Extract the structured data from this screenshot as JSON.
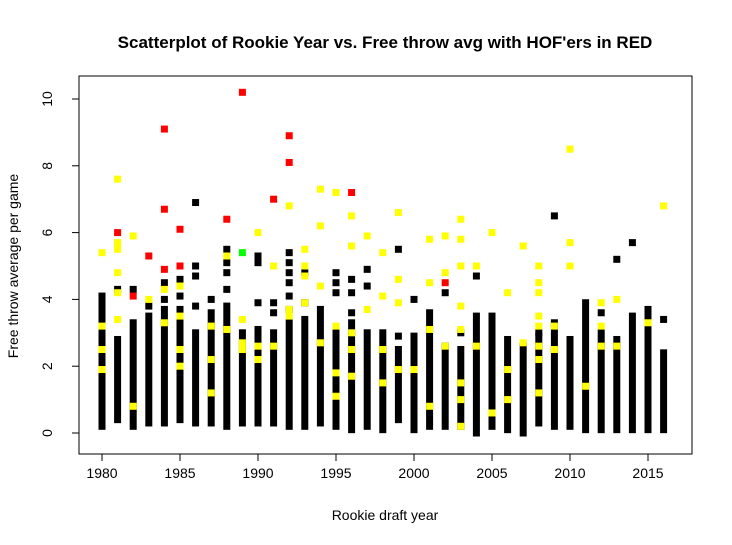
{
  "chart_data": {
    "type": "scatter",
    "title": "Scatterplot of Rookie Year vs. Free throw avg with HOF'ers in RED",
    "xlabel": "Rookie draft year",
    "ylabel": "Free throw average per game",
    "xlim": [
      1979,
      2017
    ],
    "ylim": [
      -0.4,
      10.5
    ],
    "xticks": [
      1980,
      1985,
      1990,
      1995,
      2000,
      2005,
      2010,
      2015
    ],
    "yticks": [
      0,
      2,
      4,
      6,
      8,
      10
    ],
    "grid": false,
    "legend": "none",
    "colors": {
      "regular": "#000000",
      "highlight_yellow": "#FFFF00",
      "hof": "#FF0000",
      "green": "#00FF00"
    },
    "columns": [
      {
        "year": 1980,
        "lo": 0.2,
        "hi": 4.1
      },
      {
        "year": 1981,
        "lo": 0.4,
        "hi": 2.8
      },
      {
        "year": 1982,
        "lo": 0.2,
        "hi": 3.3
      },
      {
        "year": 1983,
        "lo": 0.3,
        "hi": 3.5
      },
      {
        "year": 1984,
        "lo": 0.3,
        "hi": 3.7
      },
      {
        "year": 1985,
        "lo": 0.4,
        "hi": 3.7
      },
      {
        "year": 1986,
        "lo": 0.3,
        "hi": 3.0
      },
      {
        "year": 1987,
        "lo": 0.3,
        "hi": 3.6
      },
      {
        "year": 1988,
        "lo": 0.2,
        "hi": 3.8
      },
      {
        "year": 1989,
        "lo": 0.3,
        "hi": 3.0
      },
      {
        "year": 1990,
        "lo": 0.3,
        "hi": 3.1
      },
      {
        "year": 1991,
        "lo": 0.3,
        "hi": 3.0
      },
      {
        "year": 1992,
        "lo": 0.2,
        "hi": 3.3
      },
      {
        "year": 1993,
        "lo": 0.2,
        "hi": 3.4
      },
      {
        "year": 1994,
        "lo": 0.3,
        "hi": 3.7
      },
      {
        "year": 1995,
        "lo": 0.2,
        "hi": 3.0
      },
      {
        "year": 1996,
        "lo": 0.1,
        "hi": 3.3
      },
      {
        "year": 1997,
        "lo": 0.2,
        "hi": 3.0
      },
      {
        "year": 1998,
        "lo": 0.1,
        "hi": 2.8
      },
      {
        "year": 1999,
        "lo": 0.4,
        "hi": 2.5
      },
      {
        "year": 2000,
        "lo": 0.1,
        "hi": 2.7
      },
      {
        "year": 2001,
        "lo": 0.2,
        "hi": 3.6
      },
      {
        "year": 2002,
        "lo": 0.2,
        "hi": 2.6
      },
      {
        "year": 2003,
        "lo": 0.2,
        "hi": 2.5
      },
      {
        "year": 2004,
        "lo": 0.0,
        "hi": 3.5
      },
      {
        "year": 2005,
        "lo": 0.2,
        "hi": 3.5
      },
      {
        "year": 2006,
        "lo": 0.1,
        "hi": 2.8
      },
      {
        "year": 2007,
        "lo": 0.0,
        "hi": 2.6
      },
      {
        "year": 2008,
        "lo": 0.3,
        "hi": 2.9
      },
      {
        "year": 2009,
        "lo": 0.2,
        "hi": 3.3
      },
      {
        "year": 2010,
        "lo": 0.2,
        "hi": 2.8
      },
      {
        "year": 2011,
        "lo": 0.1,
        "hi": 3.9
      },
      {
        "year": 2012,
        "lo": 0.1,
        "hi": 3.0
      },
      {
        "year": 2013,
        "lo": 0.1,
        "hi": 2.8
      },
      {
        "year": 2014,
        "lo": 0.1,
        "hi": 3.5
      },
      {
        "year": 2015,
        "lo": 0.1,
        "hi": 3.7
      },
      {
        "year": 2016,
        "lo": 0.1,
        "hi": 2.4
      }
    ],
    "black_points": [
      [
        1980,
        1.7
      ],
      [
        1981,
        4.3
      ],
      [
        1982,
        4.3
      ],
      [
        1983,
        3.8
      ],
      [
        1984,
        4.0
      ],
      [
        1984,
        4.5
      ],
      [
        1985,
        4.6
      ],
      [
        1985,
        4.1
      ],
      [
        1986,
        3.8
      ],
      [
        1986,
        4.7
      ],
      [
        1986,
        5.0
      ],
      [
        1986,
        6.9
      ],
      [
        1987,
        4.0
      ],
      [
        1988,
        4.3
      ],
      [
        1988,
        4.8
      ],
      [
        1988,
        5.1
      ],
      [
        1988,
        5.5
      ],
      [
        1990,
        3.9
      ],
      [
        1990,
        5.1
      ],
      [
        1990,
        5.3
      ],
      [
        1991,
        3.6
      ],
      [
        1991,
        3.9
      ],
      [
        1992,
        3.7
      ],
      [
        1992,
        4.1
      ],
      [
        1992,
        4.5
      ],
      [
        1992,
        4.8
      ],
      [
        1992,
        5.1
      ],
      [
        1992,
        5.4
      ],
      [
        1993,
        3.9
      ],
      [
        1993,
        4.8
      ],
      [
        1995,
        4.2
      ],
      [
        1995,
        4.5
      ],
      [
        1995,
        4.8
      ],
      [
        1996,
        3.6
      ],
      [
        1996,
        4.2
      ],
      [
        1996,
        4.6
      ],
      [
        1997,
        4.4
      ],
      [
        1997,
        4.9
      ],
      [
        1998,
        3.0
      ],
      [
        1999,
        2.9
      ],
      [
        1999,
        5.5
      ],
      [
        2000,
        2.9
      ],
      [
        2000,
        4.0
      ],
      [
        2002,
        4.2
      ],
      [
        2003,
        3.0
      ],
      [
        2004,
        4.7
      ],
      [
        2008,
        3.0
      ],
      [
        2009,
        6.5
      ],
      [
        2012,
        3.6
      ],
      [
        2013,
        5.2
      ],
      [
        2014,
        5.7
      ],
      [
        2016,
        3.4
      ]
    ],
    "yellow_points": [
      [
        1980,
        5.4
      ],
      [
        1980,
        3.2
      ],
      [
        1980,
        2.5
      ],
      [
        1980,
        1.9
      ],
      [
        1981,
        7.6
      ],
      [
        1981,
        5.7
      ],
      [
        1981,
        5.5
      ],
      [
        1981,
        4.8
      ],
      [
        1981,
        4.2
      ],
      [
        1981,
        3.4
      ],
      [
        1982,
        5.9
      ],
      [
        1982,
        0.8
      ],
      [
        1983,
        4.0
      ],
      [
        1984,
        4.3
      ],
      [
        1984,
        3.3
      ],
      [
        1985,
        4.4
      ],
      [
        1985,
        3.5
      ],
      [
        1985,
        2.0
      ],
      [
        1985,
        2.5
      ],
      [
        1987,
        3.2
      ],
      [
        1987,
        2.2
      ],
      [
        1987,
        1.2
      ],
      [
        1988,
        3.1
      ],
      [
        1988,
        5.3
      ],
      [
        1989,
        3.4
      ],
      [
        1989,
        2.7
      ],
      [
        1989,
        2.5
      ],
      [
        1990,
        6.0
      ],
      [
        1990,
        2.6
      ],
      [
        1990,
        2.2
      ],
      [
        1991,
        5.0
      ],
      [
        1991,
        2.6
      ],
      [
        1992,
        6.8
      ],
      [
        1992,
        3.7
      ],
      [
        1992,
        3.5
      ],
      [
        1993,
        5.5
      ],
      [
        1993,
        5.0
      ],
      [
        1993,
        4.7
      ],
      [
        1993,
        3.9
      ],
      [
        1994,
        7.3
      ],
      [
        1994,
        6.2
      ],
      [
        1994,
        4.4
      ],
      [
        1994,
        2.7
      ],
      [
        1995,
        7.2
      ],
      [
        1995,
        3.2
      ],
      [
        1995,
        1.8
      ],
      [
        1995,
        1.1
      ],
      [
        1996,
        6.5
      ],
      [
        1996,
        5.6
      ],
      [
        1996,
        3.0
      ],
      [
        1996,
        2.5
      ],
      [
        1996,
        1.7
      ],
      [
        1997,
        5.9
      ],
      [
        1997,
        3.7
      ],
      [
        1998,
        5.4
      ],
      [
        1998,
        4.1
      ],
      [
        1998,
        2.5
      ],
      [
        1998,
        1.5
      ],
      [
        1999,
        6.6
      ],
      [
        1999,
        4.6
      ],
      [
        1999,
        3.9
      ],
      [
        1999,
        1.9
      ],
      [
        2000,
        1.9
      ],
      [
        2001,
        5.8
      ],
      [
        2001,
        4.5
      ],
      [
        2001,
        3.1
      ],
      [
        2001,
        0.8
      ],
      [
        2002,
        5.9
      ],
      [
        2002,
        4.8
      ],
      [
        2002,
        2.6
      ],
      [
        2003,
        6.4
      ],
      [
        2003,
        5.8
      ],
      [
        2003,
        5.0
      ],
      [
        2003,
        3.8
      ],
      [
        2003,
        3.1
      ],
      [
        2003,
        1.5
      ],
      [
        2003,
        1.0
      ],
      [
        2003,
        0.2
      ],
      [
        2004,
        5.0
      ],
      [
        2004,
        2.6
      ],
      [
        2005,
        6.0
      ],
      [
        2005,
        0.6
      ],
      [
        2006,
        4.2
      ],
      [
        2006,
        1.9
      ],
      [
        2006,
        1.0
      ],
      [
        2007,
        5.6
      ],
      [
        2007,
        2.7
      ],
      [
        2008,
        5.0
      ],
      [
        2008,
        4.5
      ],
      [
        2008,
        4.2
      ],
      [
        2008,
        3.5
      ],
      [
        2008,
        3.2
      ],
      [
        2008,
        2.6
      ],
      [
        2008,
        2.2
      ],
      [
        2008,
        1.2
      ],
      [
        2009,
        3.2
      ],
      [
        2009,
        2.5
      ],
      [
        2010,
        8.5
      ],
      [
        2010,
        5.7
      ],
      [
        2010,
        5.0
      ],
      [
        2011,
        1.4
      ],
      [
        2012,
        3.9
      ],
      [
        2012,
        3.2
      ],
      [
        2012,
        2.6
      ],
      [
        2013,
        4.0
      ],
      [
        2013,
        2.6
      ],
      [
        2015,
        3.3
      ],
      [
        2016,
        6.8
      ]
    ],
    "hof_points": [
      [
        1981,
        6.0
      ],
      [
        1982,
        4.1
      ],
      [
        1983,
        5.3
      ],
      [
        1984,
        9.1
      ],
      [
        1984,
        6.7
      ],
      [
        1984,
        4.9
      ],
      [
        1985,
        6.1
      ],
      [
        1985,
        5.0
      ],
      [
        1988,
        6.4
      ],
      [
        1989,
        10.2
      ],
      [
        1991,
        7.0
      ],
      [
        1992,
        8.9
      ],
      [
        1992,
        8.1
      ],
      [
        1996,
        7.2
      ],
      [
        2002,
        4.5
      ]
    ],
    "green_points": [
      [
        1989,
        5.4
      ]
    ]
  }
}
